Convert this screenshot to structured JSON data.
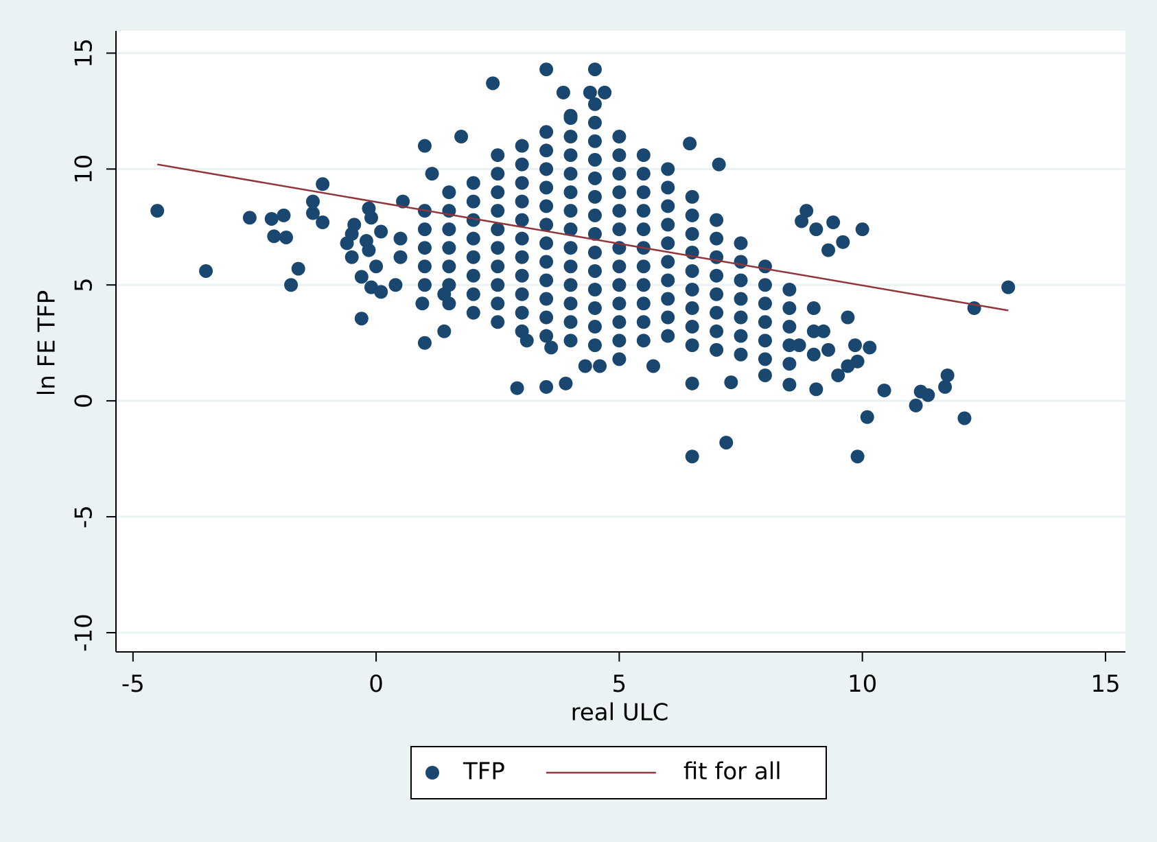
{
  "chart_data": {
    "type": "scatter",
    "xlabel": "real ULC",
    "ylabel": "ln FE TFP",
    "xlim": [
      -5.35,
      15.41
    ],
    "ylim": [
      -10.83,
      15.96
    ],
    "xticks": [
      -5,
      0,
      5,
      10,
      15
    ],
    "yticks": [
      -10,
      -5,
      0,
      5,
      10,
      15
    ],
    "grid": true,
    "legend": "bottom",
    "series": [
      {
        "name": "TFP",
        "type": "scatter",
        "color": "#1a476f",
        "x": [
          0.5,
          0.5,
          1,
          1,
          1,
          1,
          1,
          1.5,
          1.5,
          1.5,
          1.5,
          1.5,
          1.5,
          1.5,
          2,
          2,
          2,
          2,
          2,
          2,
          2,
          2,
          2.5,
          2.5,
          2.5,
          2.5,
          2.5,
          2.5,
          2.5,
          2.5,
          2.5,
          2.5,
          3,
          3,
          3,
          3,
          3,
          3,
          3,
          3,
          3,
          3,
          3,
          3.5,
          3.5,
          3.5,
          3.5,
          3.5,
          3.5,
          3.5,
          3.5,
          3.5,
          3.5,
          3.5,
          3.5,
          4,
          4,
          4,
          4,
          4,
          4,
          4,
          4,
          4,
          4,
          4,
          4,
          4,
          4.5,
          4.5,
          4.5,
          4.5,
          4.5,
          4.5,
          4.5,
          4.5,
          4.5,
          4.5,
          4.5,
          4.5,
          4.5,
          4.5,
          5,
          5,
          5,
          5,
          5,
          5,
          5,
          5,
          5,
          5,
          5,
          5,
          5.5,
          5.5,
          5.5,
          5.5,
          5.5,
          5.5,
          5.5,
          5.5,
          5.5,
          5.5,
          5.5,
          6,
          6,
          6,
          6,
          6,
          6,
          6,
          6,
          6,
          6,
          6.5,
          6.5,
          6.5,
          6.5,
          6.5,
          6.5,
          6.5,
          6.5,
          6.5,
          7,
          7,
          7,
          7,
          7,
          7,
          7,
          7,
          7.5,
          7.5,
          7.5,
          7.5,
          7.5,
          7.5,
          7.5,
          8,
          8,
          8,
          8,
          8,
          8,
          8.5,
          8.5,
          8.5,
          8.5,
          8.5,
          9,
          9,
          9,
          -4.5,
          -3.5,
          -2.6,
          -2.15,
          -1.9,
          -2.1,
          -1.85,
          -1.75,
          -1.6,
          -1.3,
          -1.3,
          -1.1,
          -1.1,
          -0.6,
          -0.5,
          -0.5,
          -0.45,
          -0.3,
          -0.3,
          -0.2,
          -0.15,
          -0.15,
          -0.1,
          0,
          -0.1,
          0.1,
          0.1,
          0.4,
          0.55,
          1,
          0.95,
          1,
          1.15,
          1.4,
          1.4,
          1.75,
          2.4,
          2.9,
          3.5,
          3.5,
          3.9,
          4.5,
          4.4,
          4.7,
          3.85,
          4,
          6.45,
          6.5,
          6.5,
          7.2,
          7.05,
          7.3,
          8.5,
          8.75,
          8.85,
          9.05,
          9.3,
          9.4,
          9.6,
          9.05,
          9.9,
          10,
          10.1,
          10.15,
          9.85,
          10.45,
          11.1,
          11.2,
          11.35,
          11.7,
          11.75,
          12.1,
          12.3,
          13,
          5.7,
          5,
          4.3,
          4.6,
          3.6,
          3.1,
          9.7,
          9.9,
          9.7,
          9.5,
          8,
          8.7,
          9.3,
          9.2
        ],
        "values": [
          6.2,
          7.0,
          5.0,
          5.8,
          6.6,
          7.4,
          8.2,
          4.2,
          5.0,
          5.8,
          6.6,
          7.4,
          8.2,
          9.0,
          3.8,
          4.6,
          5.4,
          6.2,
          7.0,
          7.8,
          8.6,
          9.4,
          3.4,
          4.2,
          5.0,
          5.8,
          6.6,
          7.4,
          8.2,
          9.0,
          9.8,
          10.6,
          3.0,
          3.8,
          4.6,
          5.4,
          6.2,
          7.0,
          7.8,
          8.6,
          9.4,
          10.2,
          11.0,
          2.8,
          3.6,
          4.4,
          5.2,
          6.0,
          6.8,
          7.6,
          8.4,
          9.2,
          10.0,
          10.8,
          11.6,
          2.6,
          3.4,
          4.2,
          5.0,
          5.8,
          6.6,
          7.4,
          8.2,
          9.0,
          9.8,
          10.6,
          11.4,
          12.2,
          2.4,
          3.2,
          4.0,
          4.8,
          5.6,
          6.4,
          7.2,
          8.0,
          8.8,
          9.6,
          10.4,
          11.2,
          12.0,
          12.8,
          2.6,
          3.4,
          4.2,
          5.0,
          5.8,
          6.6,
          7.4,
          8.2,
          9.0,
          9.8,
          10.6,
          11.4,
          2.6,
          3.4,
          4.2,
          5.0,
          5.8,
          6.6,
          7.4,
          8.2,
          9.0,
          9.8,
          10.6,
          2.8,
          3.6,
          4.4,
          5.2,
          6.0,
          6.8,
          7.6,
          8.4,
          9.2,
          10.0,
          2.4,
          3.2,
          4.0,
          4.8,
          5.6,
          6.4,
          7.2,
          8.0,
          8.8,
          2.2,
          3.0,
          3.8,
          4.6,
          5.4,
          6.2,
          7.0,
          7.8,
          2.0,
          2.8,
          3.6,
          4.4,
          5.2,
          6.0,
          6.8,
          1.8,
          2.6,
          3.4,
          4.2,
          5.0,
          5.8,
          1.6,
          2.4,
          3.2,
          4.0,
          4.8,
          2.0,
          3.0,
          4.0,
          8.2,
          5.6,
          7.9,
          7.85,
          8.0,
          7.1,
          7.05,
          5.0,
          5.7,
          8.6,
          8.1,
          9.35,
          7.7,
          6.8,
          7.2,
          6.2,
          7.6,
          5.35,
          3.55,
          6.9,
          6.5,
          8.3,
          7.9,
          5.8,
          4.9,
          4.7,
          7.3,
          5.0,
          8.6,
          2.5,
          4.2,
          11.0,
          9.8,
          4.6,
          3.0,
          11.4,
          13.7,
          0.55,
          14.3,
          0.6,
          0.75,
          14.3,
          13.3,
          13.3,
          13.3,
          12.3,
          11.1,
          0.75,
          -2.4,
          -1.8,
          10.2,
          0.8,
          0.7,
          7.75,
          8.2,
          7.4,
          6.5,
          7.7,
          6.85,
          0.5,
          -2.4,
          7.4,
          -0.7,
          2.3,
          2.4,
          0.45,
          -0.2,
          0.4,
          0.25,
          0.6,
          1.1,
          -0.75,
          4.0,
          4.9,
          1.5,
          1.8,
          1.5,
          1.5,
          2.3,
          2.6,
          3.6,
          1.7,
          1.5,
          1.1,
          1.1,
          2.4,
          2.2,
          3.0
        ]
      },
      {
        "name": "fit for all",
        "type": "line",
        "color": "#90353b",
        "x": [
          -4.5,
          13
        ],
        "values": [
          10.2,
          3.9
        ]
      }
    ]
  }
}
